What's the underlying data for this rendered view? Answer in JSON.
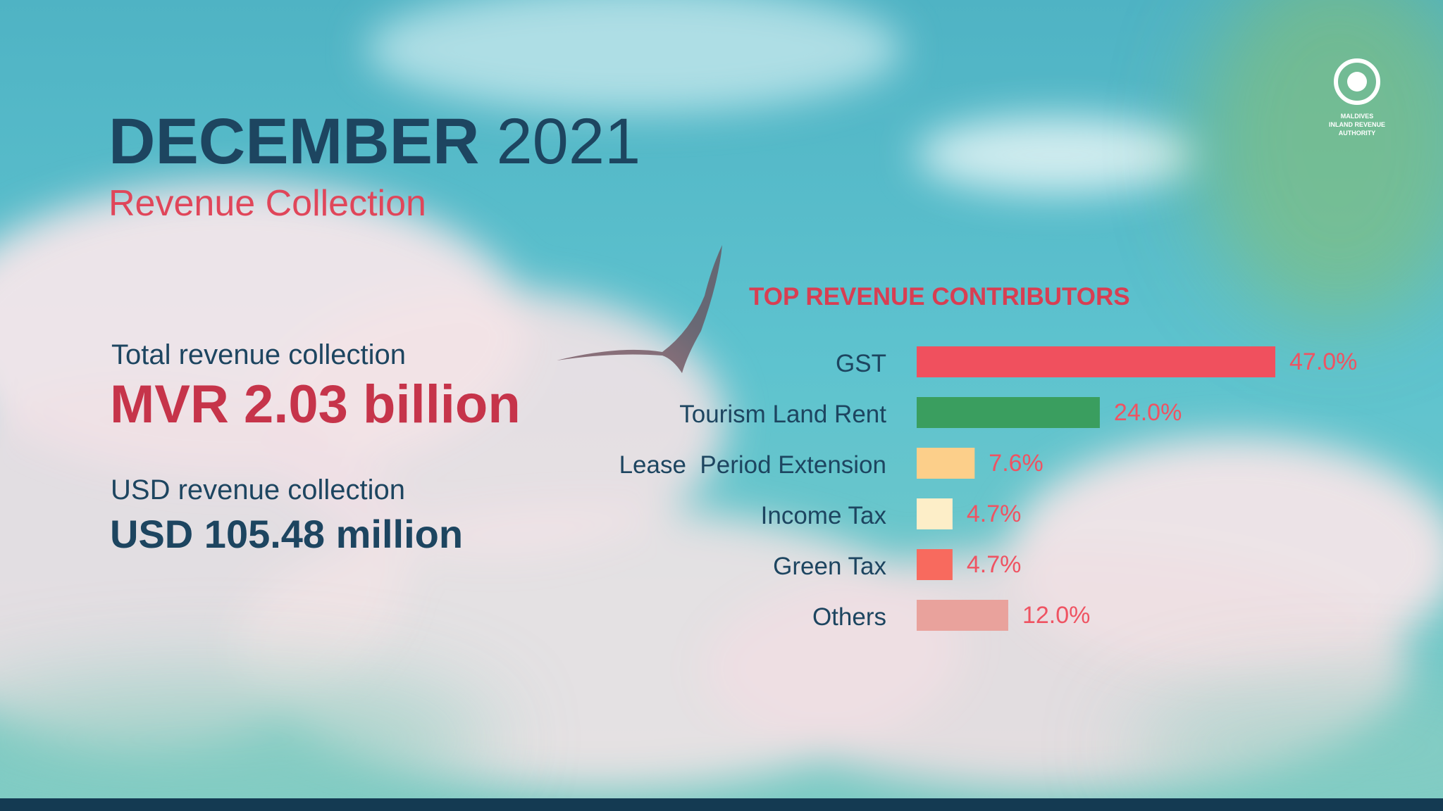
{
  "header": {
    "title_bold": "DECEMBER",
    "title_light": "2021",
    "subtitle": "Revenue Collection"
  },
  "stats": [
    {
      "label": "Total revenue collection",
      "value": "MVR 2.03 billion"
    },
    {
      "label": "USD revenue collection",
      "value": "USD 105.48 million"
    }
  ],
  "logo": {
    "lines": [
      "MALDIVES",
      "INLAND REVENUE",
      "AUTHORITY"
    ]
  },
  "chart_data": {
    "type": "bar",
    "orientation": "horizontal",
    "title": "TOP REVENUE CONTRIBUTORS",
    "categories": [
      "GST",
      "Tourism Land Rent",
      "Lease  Period Extension",
      "Income Tax",
      "Green Tax",
      "Others"
    ],
    "values": [
      47.0,
      24.0,
      7.6,
      4.7,
      4.7,
      12.0
    ],
    "value_labels": [
      "47.0%",
      "24.0%",
      "7.6%",
      "4.7%",
      "4.7%",
      "12.0%"
    ],
    "colors": [
      "#f0505e",
      "#3a9e5f",
      "#fccf8a",
      "#fdeec8",
      "#f86a5e",
      "#e9a29c"
    ]
  }
}
